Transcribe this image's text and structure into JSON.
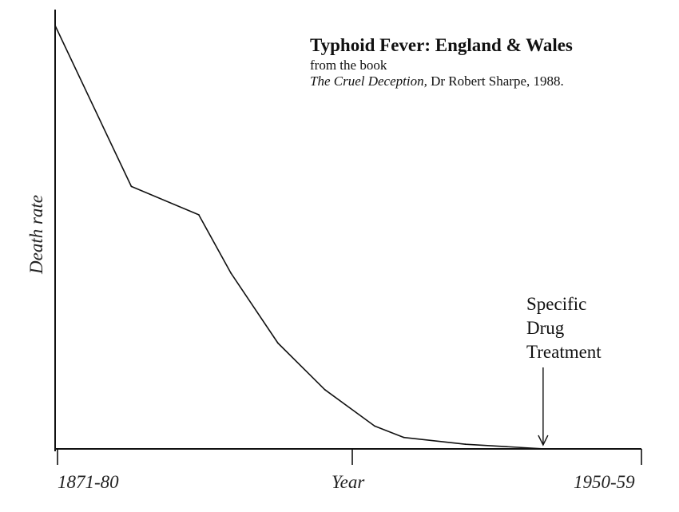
{
  "chart_data": {
    "type": "line",
    "title": "Typhoid Fever: England & Wales",
    "subtitle_line1": "from the book",
    "subtitle_book": "The Cruel Deception,",
    "subtitle_rest": "Dr Robert Sharpe, 1988.",
    "xlabel": "Year",
    "ylabel": "Death rate",
    "x_tick_labels": [
      "1871-80",
      "1950-59"
    ],
    "xlim": [
      0,
      1
    ],
    "ylim": [
      0,
      1
    ],
    "grid": false,
    "series": [
      {
        "x": [
          0,
          0.13,
          0.245,
          0.3,
          0.38,
          0.46,
          0.545,
          0.595,
          0.7,
          0.835
        ],
        "y": [
          1.0,
          0.62,
          0.553,
          0.415,
          0.25,
          0.14,
          0.054,
          0.027,
          0.011,
          0.0
        ]
      }
    ],
    "annotation": {
      "lines": [
        "Specific",
        "Drug",
        "Treatment"
      ],
      "x": 0.835
    }
  }
}
